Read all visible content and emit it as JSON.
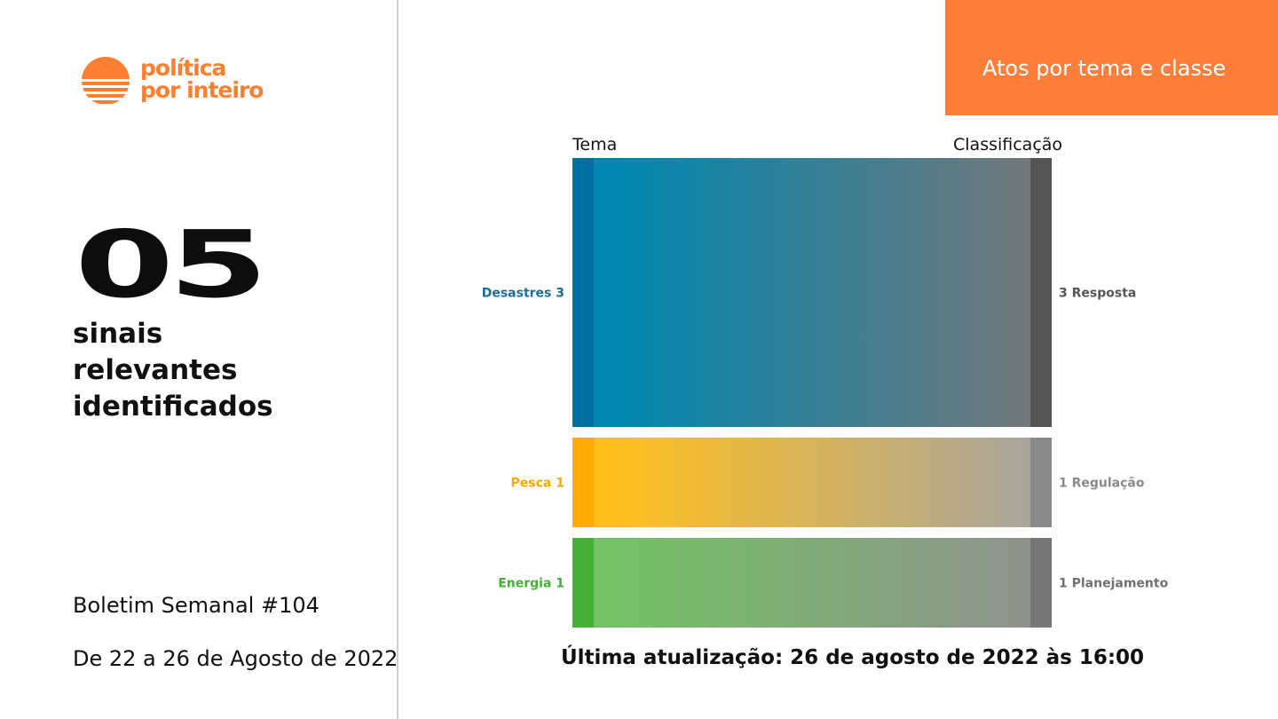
{
  "brand": {
    "line1": "política",
    "line2": "por inteiro",
    "color": "#ff7f32"
  },
  "summary": {
    "count": "05",
    "line1": "sinais",
    "line2": "relevantes",
    "line3": "identificados"
  },
  "bulletin": {
    "title": "Boletim Semanal #104",
    "dates": "De 22 a 26 de Agosto de 2022"
  },
  "banner": {
    "title": "Atos por tema e classe",
    "color": "#ff7f3a"
  },
  "chart_data": {
    "type": "sankey",
    "left_header": "Tema",
    "right_header": "Classificação",
    "flows": [
      {
        "source": "Desastres",
        "source_label": "Desastres 3",
        "target": "Resposta",
        "target_label": "3 Resposta",
        "value": 3,
        "source_color": "#0087b0",
        "source_node_color": "#006fa0",
        "target_color": "#777777",
        "target_node_color": "#545454",
        "label_color": "#1a6e93",
        "target_label_color": "#555555"
      },
      {
        "source": "Pesca",
        "source_label": "Pesca 1",
        "target": "Regulação",
        "target_label": "1 Regulação",
        "value": 1,
        "source_color": "#ffbf1f",
        "source_node_color": "#ffad00",
        "target_color": "#a5a5a5",
        "target_node_color": "#8a8a8a",
        "label_color": "#f5a800",
        "target_label_color": "#8a8a8a"
      },
      {
        "source": "Energia",
        "source_label": "Energia 1",
        "target": "Planejamento",
        "target_label": "1 Planejamento",
        "value": 1,
        "source_color": "#74c165",
        "source_node_color": "#44b034",
        "target_color": "#909090",
        "target_node_color": "#777777",
        "label_color": "#44b034",
        "target_label_color": "#707070"
      }
    ]
  },
  "footer": {
    "updated": "Última atualização: 26 de agosto de 2022 às 16:00"
  }
}
